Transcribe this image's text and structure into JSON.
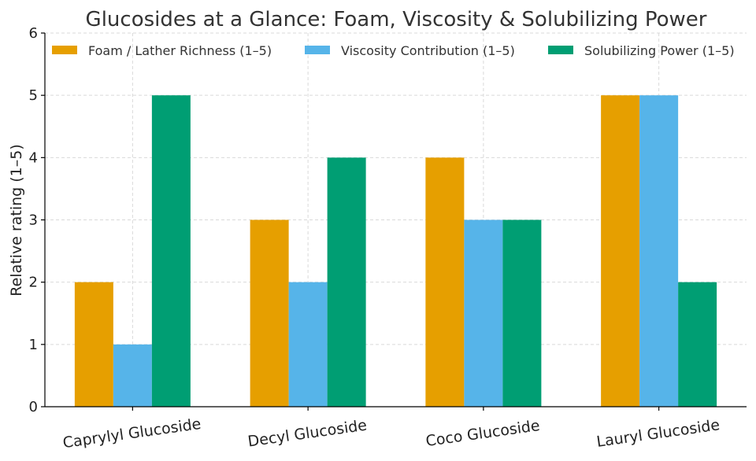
{
  "chart_data": {
    "type": "bar",
    "title": "Glucosides at a Glance: Foam, Viscosity & Solubilizing Power",
    "xlabel": "",
    "ylabel": "Relative rating (1–5)",
    "ylim": [
      0,
      6
    ],
    "yticks": [
      "0",
      "1",
      "2",
      "3",
      "4",
      "5",
      "6"
    ],
    "categories": [
      "Caprylyl Glucoside",
      "Decyl Glucoside",
      "Coco Glucoside",
      "Lauryl Glucoside"
    ],
    "series": [
      {
        "name": "Foam / Lather Richness (1–5)",
        "color": "#E69F00",
        "values": [
          2,
          3,
          4,
          5
        ]
      },
      {
        "name": "Viscosity Contribution (1–5)",
        "color": "#56B4E9",
        "values": [
          1,
          2,
          3,
          5
        ]
      },
      {
        "name": "Solubilizing Power (1–5)",
        "color": "#009E73",
        "values": [
          5,
          4,
          3,
          2
        ]
      }
    ],
    "grid": true,
    "legend_position": "top"
  }
}
